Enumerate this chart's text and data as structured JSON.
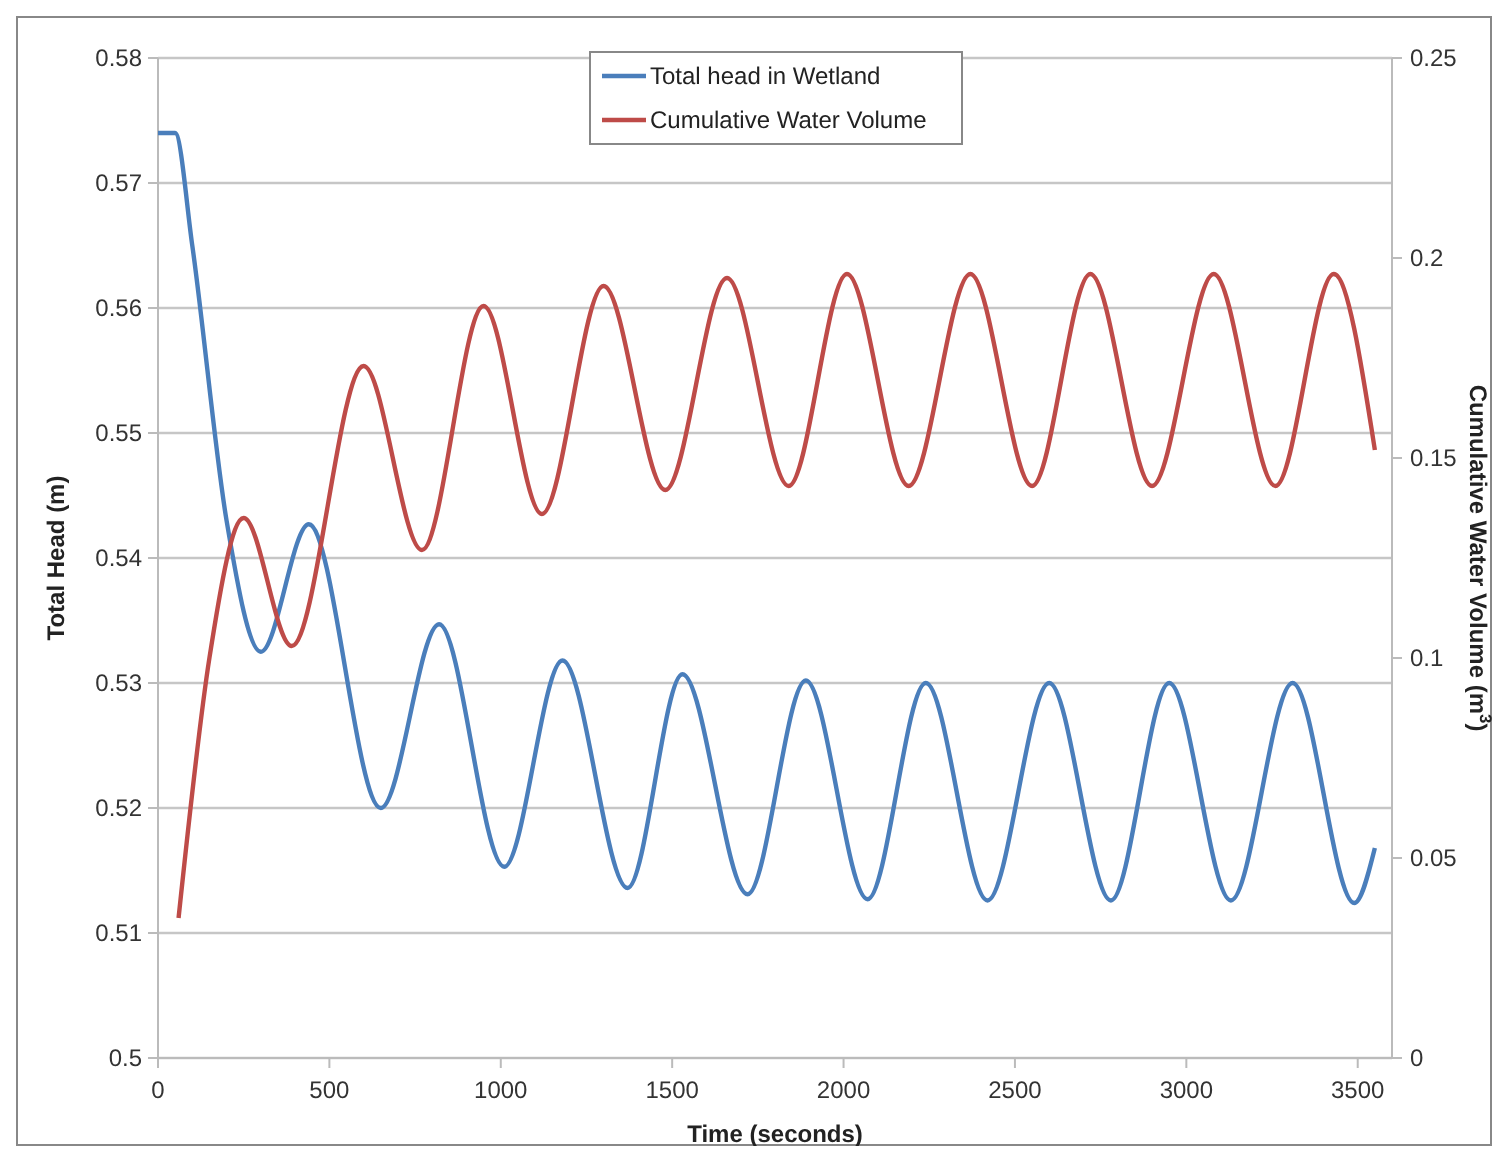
{
  "chart_data": {
    "type": "line",
    "xlabel": "Time (seconds)",
    "ylabel": "Total Head (m)",
    "y2label": "Cumulative Water Volume (m$^{3}$)",
    "xlim": [
      0,
      3600
    ],
    "xticks": [
      0,
      500,
      1000,
      1500,
      2000,
      2500,
      3000,
      3500
    ],
    "ylim": [
      0.5,
      0.58
    ],
    "yticks": [
      0.5,
      0.51,
      0.52,
      0.53,
      0.54,
      0.55,
      0.56,
      0.57,
      0.58
    ],
    "y2lim": [
      0,
      0.25
    ],
    "y2ticks": [
      0,
      0.05,
      0.1,
      0.15,
      0.2,
      0.25
    ],
    "grid": "y",
    "legend": "top",
    "marker": "none",
    "line_style": "solid",
    "series": [
      {
        "name": "Total head in Wetland",
        "color": "#4a7ebb",
        "x": [
          0,
          50,
          100,
          200,
          300,
          440,
          650,
          820,
          1010,
          1180,
          1370,
          1530,
          1720,
          1890,
          2070,
          2240,
          2420,
          2600,
          2780,
          2950,
          3130,
          3310,
          3490,
          3550
        ],
        "values": [
          0.574,
          0.574,
          0.565,
          0.543,
          0.5325,
          0.5427,
          0.52,
          0.5347,
          0.5153,
          0.5318,
          0.5136,
          0.5307,
          0.5131,
          0.5302,
          0.5127,
          0.53,
          0.5126,
          0.53,
          0.5126,
          0.53,
          0.5126,
          0.53,
          0.5124,
          0.5168
        ]
      },
      {
        "name": "Cumulative Water Volume",
        "color": "#be4b48",
        "axis": "y2",
        "x": [
          60,
          150,
          250,
          390,
          600,
          770,
          950,
          1120,
          1300,
          1480,
          1660,
          1840,
          2010,
          2190,
          2370,
          2550,
          2720,
          2900,
          3080,
          3260,
          3430,
          3550
        ],
        "values": [
          0.035,
          0.1,
          0.135,
          0.103,
          0.173,
          0.127,
          0.188,
          0.136,
          0.193,
          0.142,
          0.195,
          0.143,
          0.196,
          0.143,
          0.196,
          0.143,
          0.196,
          0.143,
          0.196,
          0.143,
          0.196,
          0.152
        ]
      }
    ]
  }
}
